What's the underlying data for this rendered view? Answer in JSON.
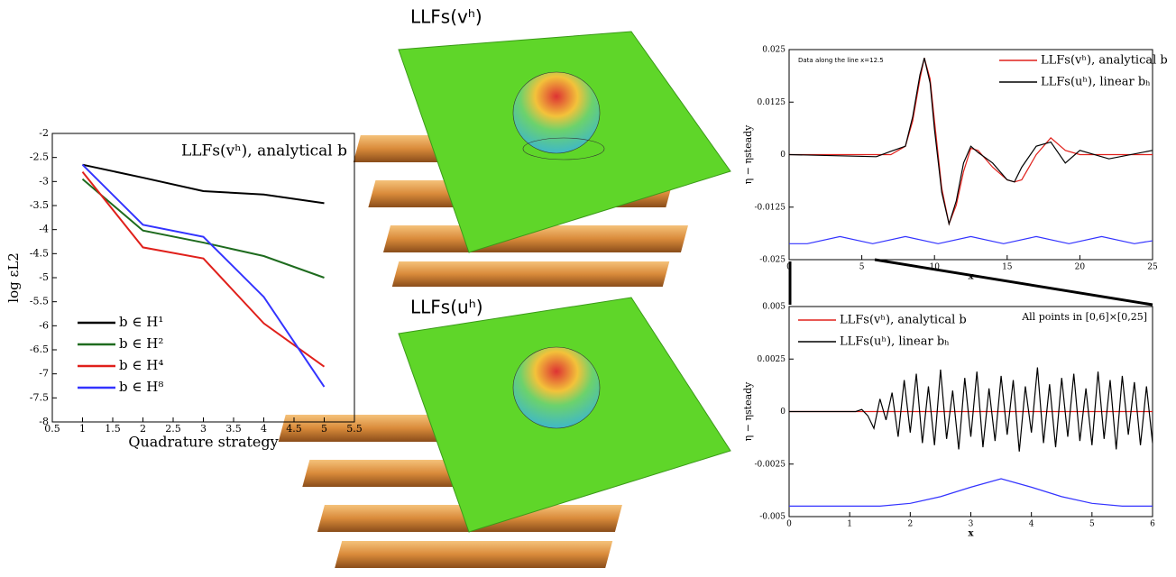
{
  "panels": {
    "top_label": "LLFs(vʰ)",
    "bottom_label": "LLFs(uʰ)"
  },
  "chart_data": [
    {
      "type": "line",
      "title": "LLFs(vʰ), analytical b",
      "x_label": "Quadrature strategy",
      "y_label": "log εL2",
      "x": [
        1,
        2,
        3,
        4,
        5
      ],
      "xlim": [
        0.5,
        5.5
      ],
      "xticks": [
        0.5,
        1,
        1.5,
        2,
        2.5,
        3,
        3.5,
        4,
        4.5,
        5,
        5.5
      ],
      "ylim": [
        -8,
        -2
      ],
      "yticks": [
        -8,
        -7.5,
        -7,
        -6.5,
        -6,
        -5.5,
        -5,
        -4.5,
        -4,
        -3.5,
        -3,
        -2.5,
        -2
      ],
      "legend": "lower left",
      "series": [
        {
          "name": "b ∈ H¹",
          "color": "#000000",
          "values": [
            -2.65,
            -2.92,
            -3.2,
            -3.27,
            -3.45
          ]
        },
        {
          "name": "b ∈ H²",
          "color": "#1e6b1e",
          "values": [
            -2.95,
            -4.02,
            -4.27,
            -4.55,
            -5.0
          ]
        },
        {
          "name": "b ∈ H⁴",
          "color": "#e0201b",
          "values": [
            -2.8,
            -4.37,
            -4.6,
            -5.95,
            -6.85
          ]
        },
        {
          "name": "b ∈ H⁸",
          "color": "#3333ff",
          "values": [
            -2.65,
            -3.9,
            -4.15,
            -5.4,
            -7.27
          ]
        }
      ]
    },
    {
      "type": "line",
      "annotation": "Data along the line x=12.5",
      "x_label": "x",
      "y_label": "η − ηsteady",
      "x": [
        0,
        6,
        7,
        8,
        8.5,
        9,
        9.3,
        9.7,
        10,
        10.5,
        11,
        11.5,
        12,
        12.5,
        13,
        14,
        15,
        15.5,
        16,
        17,
        18,
        19,
        20,
        22,
        25
      ],
      "xlim": [
        0,
        25
      ],
      "xticks": [
        0,
        5,
        10,
        15,
        20,
        25
      ],
      "ylim": [
        -0.025,
        0.025
      ],
      "yticks": [
        -0.025,
        -0.0125,
        0,
        0.0125,
        0.025
      ],
      "legend": "upper right",
      "series": [
        {
          "name": "LLFs(vʰ), analytical b",
          "color": "#e0201b",
          "values": [
            0,
            0,
            0,
            0.002,
            0.008,
            0.018,
            0.023,
            0.018,
            0.008,
            -0.008,
            -0.0165,
            -0.012,
            -0.004,
            0.0015,
            0.001,
            -0.003,
            -0.006,
            -0.0065,
            -0.006,
            0,
            0.004,
            0.001,
            0,
            0,
            0
          ]
        },
        {
          "name": "LLFs(uʰ), linear bₕ",
          "color": "#000000",
          "values": [
            0,
            -0.0005,
            0.0008,
            0.002,
            0.009,
            0.019,
            0.023,
            0.017,
            0.006,
            -0.009,
            -0.0165,
            -0.011,
            -0.002,
            0.002,
            0.0005,
            -0.002,
            -0.006,
            -0.0065,
            -0.003,
            0.002,
            0.003,
            -0.002,
            0.001,
            -0.001,
            0.001
          ]
        },
        {
          "color": "#3333ff",
          "x": [
            0,
            1.25,
            3.5,
            5.75,
            8,
            10.25,
            12.5,
            14.75,
            17,
            19.25,
            21.5,
            23.75,
            25
          ],
          "values": [
            -0.0212,
            -0.0212,
            -0.0195,
            -0.0212,
            -0.0195,
            -0.0212,
            -0.0195,
            -0.0212,
            -0.0195,
            -0.0212,
            -0.0195,
            -0.0212,
            -0.0205
          ]
        }
      ]
    },
    {
      "type": "line",
      "annotation": "All points in [0,6]×[0,25]",
      "x_label": "x",
      "y_label": "η − ηsteady",
      "xlim": [
        0,
        6
      ],
      "xticks": [
        0,
        1,
        2,
        3,
        4,
        5,
        6
      ],
      "ylim": [
        -0.005,
        0.005
      ],
      "yticks": [
        -0.005,
        -0.0025,
        0,
        0.0025,
        0.005
      ],
      "legend": "upper left",
      "series": [
        {
          "name": "LLFs(vʰ), analytical b",
          "color": "#e0201b",
          "x": [
            0,
            6
          ],
          "values": [
            0,
            0
          ]
        },
        {
          "name": "LLFs(uʰ), linear bₕ",
          "color": "#000000",
          "x": [
            0,
            0.1,
            0.2,
            0.3,
            0.4,
            0.5,
            0.6,
            0.7,
            0.8,
            0.9,
            1,
            1.1,
            1.2,
            1.3,
            1.4,
            1.5,
            1.6,
            1.7,
            1.8,
            1.9,
            2,
            2.1,
            2.2,
            2.3,
            2.4,
            2.5,
            2.6,
            2.7,
            2.8,
            2.9,
            3,
            3.1,
            3.2,
            3.3,
            3.4,
            3.5,
            3.6,
            3.7,
            3.8,
            3.9,
            4,
            4.1,
            4.2,
            4.3,
            4.4,
            4.5,
            4.6,
            4.7,
            4.8,
            4.9,
            5,
            5.1,
            5.2,
            5.3,
            5.4,
            5.5,
            5.6,
            5.7,
            5.8,
            5.9,
            6
          ],
          "values": [
            0,
            0,
            0,
            0,
            0,
            0,
            0,
            0,
            0,
            0,
            0,
            0,
            0.0001,
            -0.0002,
            -0.0008,
            0.0006,
            -0.0004,
            0.0009,
            -0.0012,
            0.0015,
            -0.001,
            0.0018,
            -0.0015,
            0.0012,
            -0.0016,
            0.002,
            -0.0013,
            0.001,
            -0.0018,
            0.0016,
            -0.0012,
            0.0019,
            -0.0017,
            0.0011,
            -0.0014,
            0.0017,
            -0.0011,
            0.0015,
            -0.0019,
            0.0012,
            -0.001,
            0.0021,
            -0.0015,
            0.0013,
            -0.0017,
            0.0016,
            -0.0012,
            0.0018,
            -0.0014,
            0.0011,
            -0.0016,
            0.0019,
            -0.0013,
            0.0015,
            -0.0018,
            0.0017,
            -0.0011,
            0.0014,
            -0.0016,
            0.0012,
            -0.0015
          ]
        },
        {
          "color": "#3333ff",
          "x": [
            0,
            1.5,
            2,
            2.5,
            3,
            3.5,
            4,
            4.5,
            5,
            5.5,
            6
          ],
          "values": [
            -0.0045,
            -0.0045,
            -0.00437,
            -0.00405,
            -0.0036,
            -0.0032,
            -0.0036,
            -0.00405,
            -0.00437,
            -0.0045,
            -0.0045
          ]
        }
      ]
    }
  ]
}
